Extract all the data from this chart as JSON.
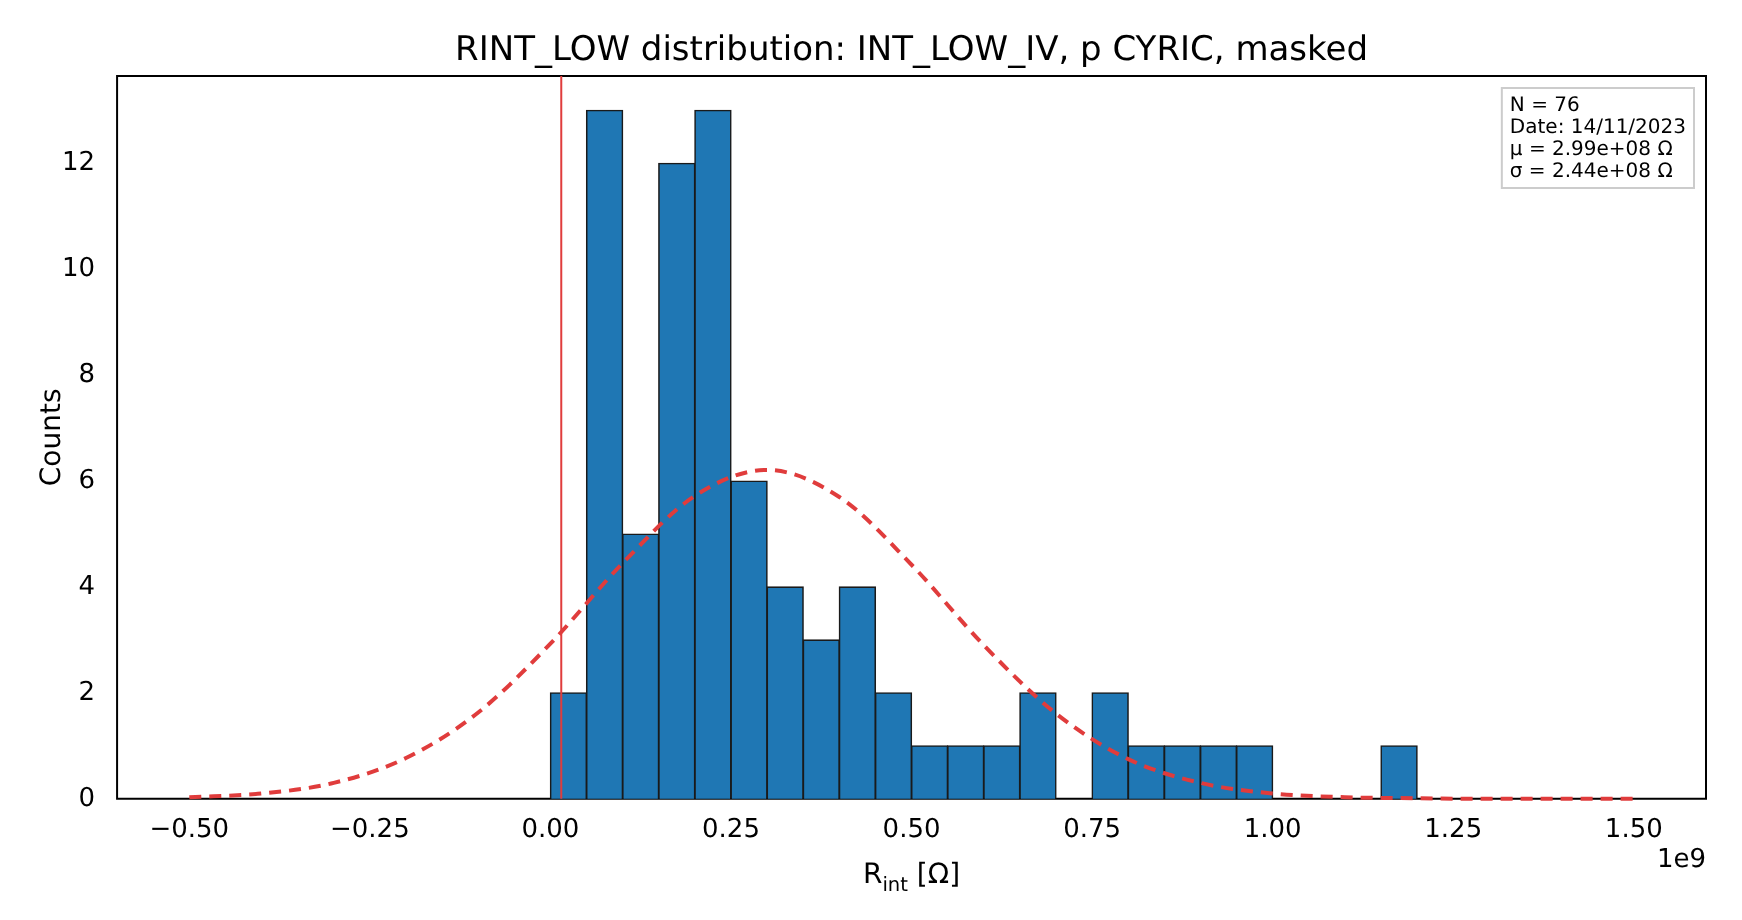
{
  "chart_data": {
    "type": "histogram",
    "title": "RINT_LOW distribution: INT_LOW_IV, p CYRIC, masked",
    "xlabel": "R$_{int}$ [Ω]",
    "ylabel": "Counts",
    "bins": [
      0,
      0.05,
      0.1,
      0.15,
      0.2,
      0.25,
      0.3,
      0.35,
      0.4,
      0.45,
      0.5,
      0.55,
      0.6,
      0.65,
      0.7,
      0.75,
      0.8,
      0.85,
      0.9,
      0.95,
      1.0,
      1.05,
      1.1,
      1.15,
      1.2
    ],
    "values": [
      2,
      13,
      5,
      12,
      13,
      6,
      4,
      3,
      4,
      2,
      1,
      1,
      1,
      2,
      0,
      2,
      1,
      1,
      1,
      1,
      0,
      0,
      0,
      1
    ],
    "color": "#1f77b4",
    "series": [
      {
        "type": "line",
        "color": "#e03c3c",
        "line_style": "dashed",
        "marker": "none",
        "x": [
          -0.5,
          -0.4,
          -0.3,
          -0.2,
          -0.1,
          0,
          0.1,
          0.2,
          0.3,
          0.4,
          0.5,
          0.6,
          0.7,
          0.8,
          0.9,
          1.0,
          1.1,
          1.2,
          1.3,
          1.4,
          1.5
        ],
        "values": [
          0.03,
          0.1,
          0.3,
          0.77,
          1.63,
          2.93,
          4.45,
          5.72,
          6.21,
          5.7,
          4.42,
          2.9,
          1.61,
          0.75,
          0.3,
          0.1,
          0.03,
          0.01,
          0,
          0,
          0
        ]
      }
    ],
    "ref_lines": [
      {
        "axis": "x",
        "value": 0.015,
        "color": "#e03c3c"
      }
    ],
    "xlim": [
      -0.6,
      1.6
    ],
    "xticks": [
      {
        "value": -0.5,
        "label": "−0.50"
      },
      {
        "value": -0.25,
        "label": "−0.25"
      },
      {
        "value": 0,
        "label": "0.00"
      },
      {
        "value": 0.25,
        "label": "0.25"
      },
      {
        "value": 0.5,
        "label": "0.50"
      },
      {
        "value": 0.75,
        "label": "0.75"
      },
      {
        "value": 1,
        "label": "1.00"
      },
      {
        "value": 1.25,
        "label": "1.25"
      },
      {
        "value": 1.5,
        "label": "1.50"
      }
    ],
    "ylim": [
      0,
      13.65
    ],
    "yticks": [
      0,
      2,
      4,
      6,
      8,
      10,
      12
    ],
    "annotations": [
      "N = 76",
      "Date: 14/11/2023",
      "μ = 2.99e+08 Ω",
      "σ = 2.44e+08 Ω",
      "1e9"
    ],
    "grid": false,
    "legend": false
  }
}
